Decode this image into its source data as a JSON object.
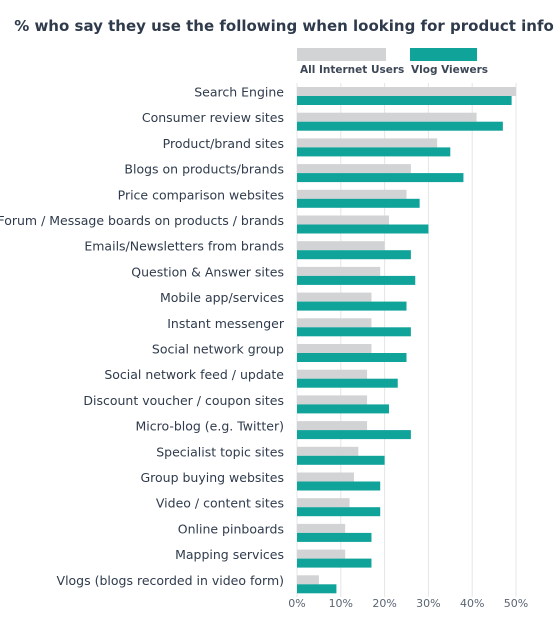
{
  "chart_data": {
    "type": "bar",
    "orientation": "horizontal",
    "title": "% who say they use the following when looking for product info",
    "xlabel": "",
    "ylabel": "",
    "xlim": [
      0,
      50
    ],
    "x_ticks": [
      "0%",
      "10%",
      "20%",
      "30%",
      "40%",
      "50%"
    ],
    "grid": true,
    "legend_position": "top",
    "categories": [
      "Search Engine",
      "Consumer review sites",
      "Product/brand sites",
      "Blogs on products/brands",
      "Price comparison websites",
      "Forum / Message boards on products / brands",
      "Emails/Newsletters from brands",
      "Question & Answer sites",
      "Mobile app/services",
      "Instant messenger",
      "Social network group",
      "Social network feed / update",
      "Discount voucher / coupon sites",
      "Micro-blog (e.g. Twitter)",
      "Specialist topic sites",
      "Group buying websites",
      "Video / content sites",
      "Online pinboards",
      "Mapping services",
      "Vlogs (blogs recorded in video form)"
    ],
    "series": [
      {
        "name": "All Internet Users",
        "color": "#d1d3d4",
        "values": [
          50,
          41,
          32,
          26,
          25,
          21,
          20,
          19,
          17,
          17,
          17,
          16,
          16,
          16,
          14,
          13,
          12,
          11,
          11,
          5
        ]
      },
      {
        "name": "Vlog Viewers",
        "color": "#0fa39a",
        "values": [
          49,
          47,
          35,
          38,
          28,
          30,
          26,
          27,
          25,
          26,
          25,
          23,
          21,
          26,
          20,
          19,
          19,
          17,
          17,
          9
        ]
      }
    ]
  }
}
